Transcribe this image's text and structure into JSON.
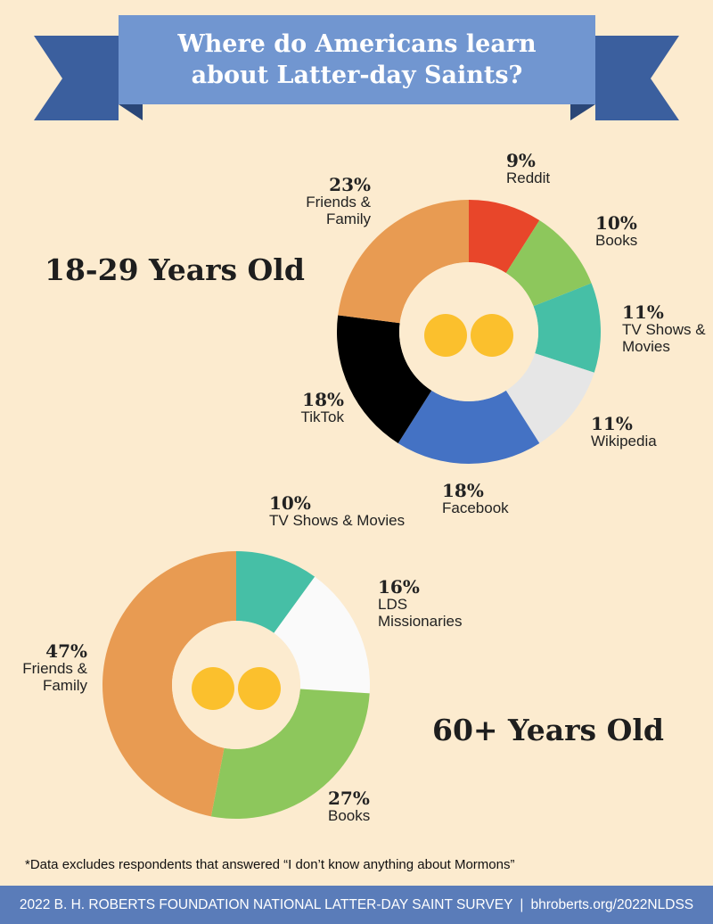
{
  "title": "Where do Americans learn about Latter-day Saints?",
  "chart_data": [
    {
      "type": "donut",
      "title": "18-29 Years Old",
      "categories": [
        "Reddit",
        "Books",
        "TV Shows & Movies",
        "Wikipedia",
        "Facebook",
        "TikTok",
        "Friends & Family"
      ],
      "values": [
        9,
        10,
        11,
        11,
        18,
        18,
        23
      ],
      "value_labels": [
        "9%",
        "10%",
        "11%",
        "11%",
        "18%",
        "18%",
        "23%"
      ],
      "colors": [
        "#e8462a",
        "#8dc75c",
        "#46bfa6",
        "#e6e6e6",
        "#4472c4",
        "#000000",
        "#e89b52"
      ]
    },
    {
      "type": "donut",
      "title": "60+ Years Old",
      "categories": [
        "TV Shows & Movies",
        "LDS Missionaries",
        "Books",
        "Friends & Family"
      ],
      "values": [
        10,
        16,
        27,
        47
      ],
      "value_labels": [
        "10%",
        "16%",
        "27%",
        "47%"
      ],
      "colors": [
        "#46bfa6",
        "#fafafa",
        "#8dc75c",
        "#e89b52"
      ]
    }
  ],
  "footnote": "*Data excludes respondents that answered “I don’t know anything about Mormons”",
  "footer": {
    "survey": "2022 B. H. ROBERTS FOUNDATION NATIONAL LATTER-DAY SAINT SURVEY",
    "separator": "|",
    "url": "bhroberts.org/2022NLDSS"
  }
}
